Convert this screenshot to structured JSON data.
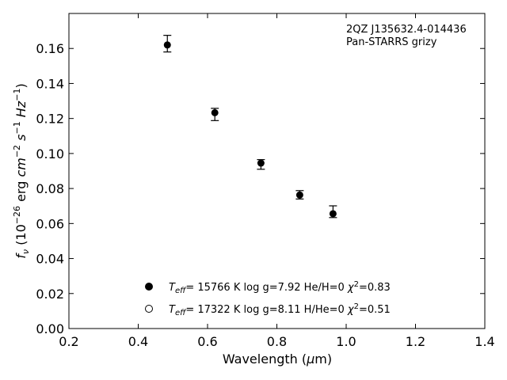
{
  "chart_data": {
    "type": "scatter",
    "title": "",
    "xlabel": "Wavelength (μm)",
    "xlabel_main": "Wavelength (",
    "xlabel_mu": "μ",
    "xlabel_end": "m)",
    "ylabel": "f_ν (10^-26 erg cm^-2 s^-1 Hz^-1)",
    "xlim": [
      0.2,
      1.4
    ],
    "ylim": [
      0.0,
      0.18
    ],
    "xticks": [
      0.2,
      0.4,
      0.6,
      0.8,
      1.0,
      1.2,
      1.4
    ],
    "yticks": [
      0.0,
      0.02,
      0.04,
      0.06,
      0.08,
      0.1,
      0.12,
      0.14,
      0.16
    ],
    "grid": false,
    "annotation": {
      "line1": "2QZ J135632.4-014436",
      "line2": "Pan-STARRS grizy"
    },
    "observed": {
      "x": [
        0.484,
        0.621,
        0.754,
        0.866,
        0.962
      ],
      "y": [
        0.162,
        0.1233,
        0.0945,
        0.0763,
        0.0656
      ],
      "yerr_low": [
        0.004,
        0.0045,
        0.0035,
        0.0023,
        0.0022
      ],
      "yerr_high": [
        0.0055,
        0.0025,
        0.002,
        0.0025,
        0.0045
      ]
    },
    "legend": [
      {
        "marker": "filled-circle",
        "teff": "15766",
        "logg": "7.92",
        "comp": "He/H=0",
        "chi2": "0.83"
      },
      {
        "marker": "open-circle",
        "teff": "17322",
        "logg": "8.11",
        "comp": "H/He=0",
        "chi2": "0.51"
      }
    ],
    "legend_placement": "bottom-center"
  }
}
